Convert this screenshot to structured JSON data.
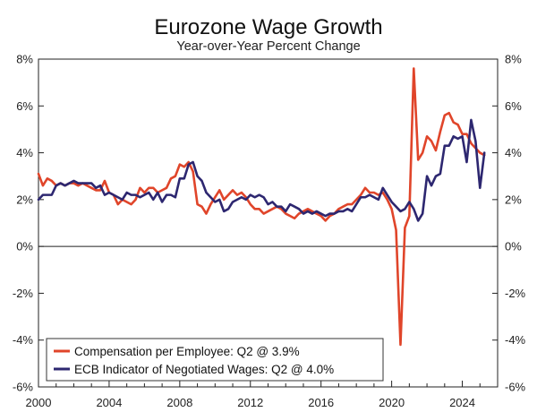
{
  "chart_data": {
    "type": "line",
    "title": "Eurozone Wage Growth",
    "subtitle": "Year-over-Year Percent Change",
    "xlim": [
      2000,
      2026
    ],
    "ylim": [
      -6,
      8
    ],
    "x_tick_labels": [
      "2000",
      "2004",
      "2008",
      "2012",
      "2016",
      "2020",
      "2024"
    ],
    "x_tick_values": [
      2000,
      2004,
      2008,
      2012,
      2016,
      2020,
      2024
    ],
    "y_tick_values": [
      -6,
      -4,
      -2,
      0,
      2,
      4,
      6,
      8
    ],
    "y_tick_labels": [
      "-6%",
      "-4%",
      "-2%",
      "0%",
      "2%",
      "4%",
      "6%",
      "8%"
    ],
    "grid": false,
    "zero_line": true,
    "legend_position": "bottom-left",
    "series": [
      {
        "name": "Compensation per Employee: Q2 @ 3.9%",
        "color": "#e0452a",
        "points": [
          [
            2000.0,
            3.1
          ],
          [
            2000.25,
            2.6
          ],
          [
            2000.5,
            2.9
          ],
          [
            2000.75,
            2.8
          ],
          [
            2001.0,
            2.6
          ],
          [
            2001.25,
            2.7
          ],
          [
            2001.5,
            2.6
          ],
          [
            2001.75,
            2.7
          ],
          [
            2002.0,
            2.7
          ],
          [
            2002.25,
            2.6
          ],
          [
            2002.5,
            2.7
          ],
          [
            2002.75,
            2.6
          ],
          [
            2003.0,
            2.5
          ],
          [
            2003.25,
            2.4
          ],
          [
            2003.5,
            2.4
          ],
          [
            2003.75,
            2.8
          ],
          [
            2004.0,
            2.3
          ],
          [
            2004.25,
            2.2
          ],
          [
            2004.5,
            1.8
          ],
          [
            2004.75,
            2.0
          ],
          [
            2005.0,
            1.9
          ],
          [
            2005.25,
            1.8
          ],
          [
            2005.5,
            2.0
          ],
          [
            2005.75,
            2.5
          ],
          [
            2006.0,
            2.3
          ],
          [
            2006.25,
            2.5
          ],
          [
            2006.5,
            2.5
          ],
          [
            2006.75,
            2.3
          ],
          [
            2007.0,
            2.4
          ],
          [
            2007.25,
            2.5
          ],
          [
            2007.5,
            2.9
          ],
          [
            2007.75,
            3.0
          ],
          [
            2008.0,
            3.5
          ],
          [
            2008.25,
            3.4
          ],
          [
            2008.5,
            3.6
          ],
          [
            2008.75,
            3.2
          ],
          [
            2009.0,
            1.8
          ],
          [
            2009.25,
            1.7
          ],
          [
            2009.5,
            1.4
          ],
          [
            2009.75,
            1.8
          ],
          [
            2010.0,
            2.1
          ],
          [
            2010.25,
            2.4
          ],
          [
            2010.5,
            2.0
          ],
          [
            2010.75,
            2.2
          ],
          [
            2011.0,
            2.4
          ],
          [
            2011.25,
            2.2
          ],
          [
            2011.5,
            2.3
          ],
          [
            2011.75,
            2.1
          ],
          [
            2012.0,
            1.8
          ],
          [
            2012.25,
            1.6
          ],
          [
            2012.5,
            1.6
          ],
          [
            2012.75,
            1.4
          ],
          [
            2013.0,
            1.5
          ],
          [
            2013.25,
            1.6
          ],
          [
            2013.5,
            1.7
          ],
          [
            2013.75,
            1.6
          ],
          [
            2014.0,
            1.4
          ],
          [
            2014.25,
            1.3
          ],
          [
            2014.5,
            1.2
          ],
          [
            2014.75,
            1.4
          ],
          [
            2015.0,
            1.5
          ],
          [
            2015.25,
            1.6
          ],
          [
            2015.5,
            1.5
          ],
          [
            2015.75,
            1.4
          ],
          [
            2016.0,
            1.3
          ],
          [
            2016.25,
            1.1
          ],
          [
            2016.5,
            1.3
          ],
          [
            2016.75,
            1.4
          ],
          [
            2017.0,
            1.6
          ],
          [
            2017.25,
            1.7
          ],
          [
            2017.5,
            1.8
          ],
          [
            2017.75,
            1.8
          ],
          [
            2018.0,
            2.0
          ],
          [
            2018.25,
            2.2
          ],
          [
            2018.5,
            2.5
          ],
          [
            2018.75,
            2.3
          ],
          [
            2019.0,
            2.3
          ],
          [
            2019.25,
            2.2
          ],
          [
            2019.5,
            2.3
          ],
          [
            2019.75,
            2.0
          ],
          [
            2020.0,
            1.6
          ],
          [
            2020.25,
            0.7
          ],
          [
            2020.5,
            -4.2
          ],
          [
            2020.75,
            0.8
          ],
          [
            2021.0,
            1.3
          ],
          [
            2021.25,
            7.6
          ],
          [
            2021.5,
            3.7
          ],
          [
            2021.75,
            4.0
          ],
          [
            2022.0,
            4.7
          ],
          [
            2022.25,
            4.5
          ],
          [
            2022.5,
            4.1
          ],
          [
            2022.75,
            4.9
          ],
          [
            2023.0,
            5.6
          ],
          [
            2023.25,
            5.7
          ],
          [
            2023.5,
            5.3
          ],
          [
            2023.75,
            5.2
          ],
          [
            2024.0,
            4.8
          ],
          [
            2024.25,
            4.8
          ],
          [
            2024.5,
            4.4
          ],
          [
            2024.75,
            4.2
          ],
          [
            2025.0,
            4.0
          ],
          [
            2025.25,
            3.9
          ]
        ]
      },
      {
        "name": "ECB Indicator of Negotiated Wages: Q2 @ 4.0%",
        "color": "#2d2770",
        "points": [
          [
            2000.0,
            2.0
          ],
          [
            2000.25,
            2.2
          ],
          [
            2000.5,
            2.2
          ],
          [
            2000.75,
            2.2
          ],
          [
            2001.0,
            2.6
          ],
          [
            2001.25,
            2.7
          ],
          [
            2001.5,
            2.6
          ],
          [
            2001.75,
            2.7
          ],
          [
            2002.0,
            2.8
          ],
          [
            2002.25,
            2.7
          ],
          [
            2002.5,
            2.7
          ],
          [
            2002.75,
            2.7
          ],
          [
            2003.0,
            2.7
          ],
          [
            2003.25,
            2.5
          ],
          [
            2003.5,
            2.6
          ],
          [
            2003.75,
            2.2
          ],
          [
            2004.0,
            2.3
          ],
          [
            2004.25,
            2.2
          ],
          [
            2004.5,
            2.1
          ],
          [
            2004.75,
            2.0
          ],
          [
            2005.0,
            2.3
          ],
          [
            2005.25,
            2.2
          ],
          [
            2005.5,
            2.2
          ],
          [
            2005.75,
            2.1
          ],
          [
            2006.0,
            2.2
          ],
          [
            2006.25,
            2.3
          ],
          [
            2006.5,
            2.0
          ],
          [
            2006.75,
            2.3
          ],
          [
            2007.0,
            1.9
          ],
          [
            2007.25,
            2.2
          ],
          [
            2007.5,
            2.2
          ],
          [
            2007.75,
            2.1
          ],
          [
            2008.0,
            2.9
          ],
          [
            2008.25,
            2.9
          ],
          [
            2008.5,
            3.5
          ],
          [
            2008.75,
            3.6
          ],
          [
            2009.0,
            3.0
          ],
          [
            2009.25,
            2.8
          ],
          [
            2009.5,
            2.3
          ],
          [
            2009.75,
            2.1
          ],
          [
            2010.0,
            1.9
          ],
          [
            2010.25,
            2.0
          ],
          [
            2010.5,
            1.5
          ],
          [
            2010.75,
            1.6
          ],
          [
            2011.0,
            1.9
          ],
          [
            2011.25,
            2.0
          ],
          [
            2011.5,
            2.1
          ],
          [
            2011.75,
            2.0
          ],
          [
            2012.0,
            2.2
          ],
          [
            2012.25,
            2.1
          ],
          [
            2012.5,
            2.2
          ],
          [
            2012.75,
            2.1
          ],
          [
            2013.0,
            1.8
          ],
          [
            2013.25,
            1.9
          ],
          [
            2013.5,
            1.7
          ],
          [
            2013.75,
            1.7
          ],
          [
            2014.0,
            1.5
          ],
          [
            2014.25,
            1.8
          ],
          [
            2014.5,
            1.7
          ],
          [
            2014.75,
            1.6
          ],
          [
            2015.0,
            1.4
          ],
          [
            2015.25,
            1.5
          ],
          [
            2015.5,
            1.4
          ],
          [
            2015.75,
            1.5
          ],
          [
            2016.0,
            1.4
          ],
          [
            2016.25,
            1.3
          ],
          [
            2016.5,
            1.4
          ],
          [
            2016.75,
            1.4
          ],
          [
            2017.0,
            1.5
          ],
          [
            2017.25,
            1.5
          ],
          [
            2017.5,
            1.6
          ],
          [
            2017.75,
            1.5
          ],
          [
            2018.0,
            1.8
          ],
          [
            2018.25,
            2.1
          ],
          [
            2018.5,
            2.1
          ],
          [
            2018.75,
            2.2
          ],
          [
            2019.0,
            2.1
          ],
          [
            2019.25,
            2.0
          ],
          [
            2019.5,
            2.5
          ],
          [
            2019.75,
            2.2
          ],
          [
            2020.0,
            1.9
          ],
          [
            2020.25,
            1.7
          ],
          [
            2020.5,
            1.5
          ],
          [
            2020.75,
            1.6
          ],
          [
            2021.0,
            1.9
          ],
          [
            2021.25,
            1.6
          ],
          [
            2021.5,
            1.1
          ],
          [
            2021.75,
            1.4
          ],
          [
            2022.0,
            3.0
          ],
          [
            2022.25,
            2.6
          ],
          [
            2022.5,
            3.0
          ],
          [
            2022.75,
            3.1
          ],
          [
            2023.0,
            4.3
          ],
          [
            2023.25,
            4.3
          ],
          [
            2023.5,
            4.7
          ],
          [
            2023.75,
            4.6
          ],
          [
            2024.0,
            4.7
          ],
          [
            2024.25,
            3.6
          ],
          [
            2024.5,
            5.4
          ],
          [
            2024.75,
            4.5
          ],
          [
            2025.0,
            2.5
          ],
          [
            2025.25,
            4.0
          ]
        ]
      }
    ]
  }
}
